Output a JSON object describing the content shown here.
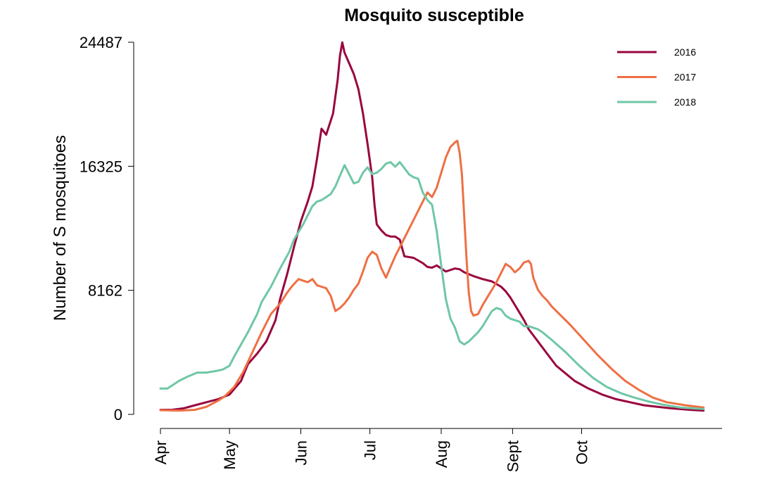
{
  "chart_data": {
    "type": "line",
    "title": "Mosquito susceptible",
    "xlabel": "",
    "ylabel": "Number of S mosquitoes",
    "x_ticks": [
      "Apr",
      "May",
      "Jun",
      "Jul",
      "Aug",
      "Sept",
      "Oct"
    ],
    "x_unit": "days since Apr 1",
    "y_ticks": [
      0,
      8162,
      16325,
      24487
    ],
    "ylim": [
      0,
      24487
    ],
    "grid": false,
    "legend_position": "top-right",
    "series": [
      {
        "name": "2016",
        "color": "#99053f",
        "points": [
          [
            0,
            300
          ],
          [
            5,
            300
          ],
          [
            10,
            400
          ],
          [
            15,
            600
          ],
          [
            20,
            800
          ],
          [
            25,
            1000
          ],
          [
            30,
            1300
          ],
          [
            35,
            2200
          ],
          [
            38,
            3300
          ],
          [
            42,
            4000
          ],
          [
            46,
            4800
          ],
          [
            50,
            6200
          ],
          [
            52,
            7600
          ],
          [
            55,
            9200
          ],
          [
            58,
            11000
          ],
          [
            61,
            12700
          ],
          [
            64,
            14000
          ],
          [
            66,
            15000
          ],
          [
            68,
            16800
          ],
          [
            70,
            18800
          ],
          [
            72,
            18400
          ],
          [
            75,
            19800
          ],
          [
            77,
            22000
          ],
          [
            78,
            23600
          ],
          [
            79,
            24480
          ],
          [
            80,
            23800
          ],
          [
            82,
            23100
          ],
          [
            84,
            22400
          ],
          [
            86,
            21400
          ],
          [
            88,
            19800
          ],
          [
            90,
            17800
          ],
          [
            92,
            15600
          ],
          [
            93,
            13800
          ],
          [
            94,
            12500
          ],
          [
            96,
            12100
          ],
          [
            98,
            11800
          ],
          [
            100,
            11700
          ],
          [
            102,
            11700
          ],
          [
            104,
            11500
          ],
          [
            106,
            10400
          ],
          [
            110,
            10300
          ],
          [
            114,
            9950
          ],
          [
            116,
            9700
          ],
          [
            118,
            9650
          ],
          [
            120,
            9800
          ],
          [
            124,
            9400
          ],
          [
            128,
            9600
          ],
          [
            130,
            9550
          ],
          [
            132,
            9350
          ],
          [
            136,
            9100
          ],
          [
            140,
            8900
          ],
          [
            144,
            8750
          ],
          [
            148,
            8400
          ],
          [
            150,
            8100
          ],
          [
            152,
            7700
          ],
          [
            154,
            7200
          ],
          [
            156,
            6700
          ],
          [
            158,
            6200
          ],
          [
            160,
            5600
          ],
          [
            164,
            4800
          ],
          [
            168,
            4000
          ],
          [
            172,
            3200
          ],
          [
            176,
            2700
          ],
          [
            180,
            2200
          ],
          [
            186,
            1700
          ],
          [
            192,
            1300
          ],
          [
            198,
            1000
          ],
          [
            204,
            800
          ],
          [
            210,
            600
          ],
          [
            216,
            500
          ],
          [
            222,
            400
          ],
          [
            230,
            300
          ],
          [
            236,
            250
          ]
        ]
      },
      {
        "name": "2017",
        "color": "#ee6f44",
        "points": [
          [
            0,
            280
          ],
          [
            8,
            250
          ],
          [
            15,
            300
          ],
          [
            20,
            500
          ],
          [
            25,
            900
          ],
          [
            28,
            1200
          ],
          [
            32,
            1800
          ],
          [
            36,
            2800
          ],
          [
            40,
            4100
          ],
          [
            44,
            5400
          ],
          [
            46,
            6000
          ],
          [
            48,
            6600
          ],
          [
            52,
            7300
          ],
          [
            55,
            8000
          ],
          [
            57,
            8400
          ],
          [
            60,
            8900
          ],
          [
            62,
            8800
          ],
          [
            64,
            8700
          ],
          [
            66,
            8900
          ],
          [
            68,
            8500
          ],
          [
            70,
            8400
          ],
          [
            72,
            8300
          ],
          [
            74,
            7800
          ],
          [
            76,
            6800
          ],
          [
            78,
            7000
          ],
          [
            80,
            7300
          ],
          [
            82,
            7700
          ],
          [
            84,
            8200
          ],
          [
            86,
            8600
          ],
          [
            88,
            9400
          ],
          [
            90,
            10300
          ],
          [
            92,
            10700
          ],
          [
            94,
            10500
          ],
          [
            96,
            9600
          ],
          [
            98,
            9000
          ],
          [
            100,
            9700
          ],
          [
            102,
            10400
          ],
          [
            104,
            11000
          ],
          [
            106,
            11600
          ],
          [
            108,
            12200
          ],
          [
            110,
            12800
          ],
          [
            112,
            13400
          ],
          [
            114,
            14000
          ],
          [
            116,
            14600
          ],
          [
            118,
            14300
          ],
          [
            120,
            14900
          ],
          [
            122,
            15900
          ],
          [
            124,
            16900
          ],
          [
            126,
            17600
          ],
          [
            128,
            17900
          ],
          [
            129,
            18000
          ],
          [
            130,
            17200
          ],
          [
            131,
            15800
          ],
          [
            132,
            13000
          ],
          [
            133,
            10200
          ],
          [
            134,
            8000
          ],
          [
            135,
            6800
          ],
          [
            136,
            6500
          ],
          [
            138,
            6600
          ],
          [
            140,
            7200
          ],
          [
            142,
            7700
          ],
          [
            144,
            8200
          ],
          [
            146,
            8700
          ],
          [
            148,
            9300
          ],
          [
            150,
            9900
          ],
          [
            152,
            9700
          ],
          [
            154,
            9350
          ],
          [
            156,
            9600
          ],
          [
            158,
            10000
          ],
          [
            160,
            10100
          ],
          [
            161,
            9900
          ],
          [
            162,
            9000
          ],
          [
            164,
            8200
          ],
          [
            166,
            7800
          ],
          [
            168,
            7500
          ],
          [
            170,
            7100
          ],
          [
            174,
            6500
          ],
          [
            178,
            5900
          ],
          [
            184,
            4900
          ],
          [
            190,
            3900
          ],
          [
            196,
            3000
          ],
          [
            202,
            2200
          ],
          [
            208,
            1600
          ],
          [
            214,
            1100
          ],
          [
            220,
            800
          ],
          [
            228,
            600
          ],
          [
            236,
            450
          ]
        ]
      },
      {
        "name": "2018",
        "color": "#6fc7a5",
        "points": [
          [
            0,
            1700
          ],
          [
            3,
            1700
          ],
          [
            5,
            1900
          ],
          [
            8,
            2200
          ],
          [
            12,
            2500
          ],
          [
            16,
            2750
          ],
          [
            20,
            2750
          ],
          [
            24,
            2850
          ],
          [
            27,
            2950
          ],
          [
            30,
            3200
          ],
          [
            32,
            3800
          ],
          [
            35,
            4600
          ],
          [
            38,
            5400
          ],
          [
            42,
            6600
          ],
          [
            44,
            7400
          ],
          [
            48,
            8400
          ],
          [
            52,
            9600
          ],
          [
            56,
            10700
          ],
          [
            58,
            11500
          ],
          [
            60,
            12000
          ],
          [
            62,
            12500
          ],
          [
            64,
            13100
          ],
          [
            66,
            13700
          ],
          [
            68,
            14000
          ],
          [
            70,
            14100
          ],
          [
            72,
            14300
          ],
          [
            74,
            14500
          ],
          [
            76,
            15000
          ],
          [
            78,
            15700
          ],
          [
            80,
            16400
          ],
          [
            82,
            15800
          ],
          [
            84,
            15200
          ],
          [
            86,
            15300
          ],
          [
            88,
            15900
          ],
          [
            90,
            16250
          ],
          [
            92,
            15800
          ],
          [
            94,
            15900
          ],
          [
            96,
            16150
          ],
          [
            98,
            16500
          ],
          [
            100,
            16600
          ],
          [
            102,
            16300
          ],
          [
            104,
            16600
          ],
          [
            106,
            16200
          ],
          [
            108,
            15800
          ],
          [
            110,
            15600
          ],
          [
            112,
            15500
          ],
          [
            114,
            14600
          ],
          [
            116,
            14100
          ],
          [
            118,
            13800
          ],
          [
            120,
            12100
          ],
          [
            122,
            9800
          ],
          [
            124,
            7600
          ],
          [
            126,
            6300
          ],
          [
            128,
            5700
          ],
          [
            130,
            4800
          ],
          [
            132,
            4600
          ],
          [
            134,
            4800
          ],
          [
            136,
            5100
          ],
          [
            138,
            5400
          ],
          [
            140,
            5800
          ],
          [
            142,
            6300
          ],
          [
            144,
            6800
          ],
          [
            146,
            7000
          ],
          [
            148,
            6900
          ],
          [
            150,
            6500
          ],
          [
            152,
            6300
          ],
          [
            156,
            6100
          ],
          [
            158,
            5800
          ],
          [
            160,
            5800
          ],
          [
            164,
            5600
          ],
          [
            166,
            5400
          ],
          [
            170,
            4900
          ],
          [
            176,
            4100
          ],
          [
            182,
            3200
          ],
          [
            188,
            2400
          ],
          [
            194,
            1800
          ],
          [
            200,
            1400
          ],
          [
            206,
            1100
          ],
          [
            212,
            850
          ],
          [
            218,
            650
          ],
          [
            226,
            450
          ],
          [
            236,
            350
          ]
        ]
      }
    ]
  }
}
